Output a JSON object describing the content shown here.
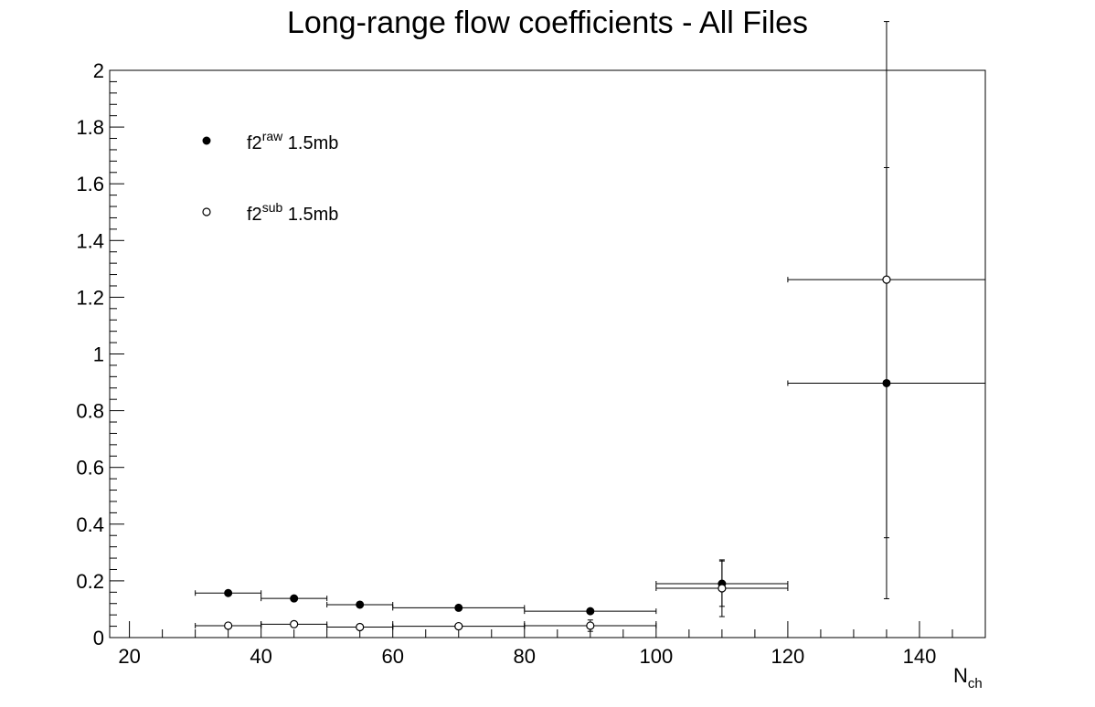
{
  "chart_data": {
    "type": "scatter",
    "title": "Long-range flow coefficients - All Files",
    "xlabel": "N",
    "xlabel_sub": "ch",
    "ylabel": "",
    "xlim": [
      17,
      150
    ],
    "ylim": [
      0,
      2
    ],
    "x_ticks": [
      20,
      40,
      60,
      80,
      100,
      120,
      140
    ],
    "y_ticks": [
      0,
      0.2,
      0.4,
      0.6,
      0.8,
      1,
      1.2,
      1.4,
      1.6,
      1.8,
      2
    ],
    "x_tick_labels": [
      "20",
      "40",
      "60",
      "80",
      "100",
      "120",
      "140"
    ],
    "y_tick_labels": [
      "0",
      "0.2",
      "0.4",
      "0.6",
      "0.8",
      "1",
      "1.2",
      "1.4",
      "1.6",
      "1.8",
      "2"
    ],
    "grid": false,
    "legend_position": "top-left",
    "series": [
      {
        "name": "f2 raw 1.5mb",
        "label_main": "f2",
        "label_sup": "raw",
        "label_tail": "1.5mb",
        "marker": "filled-circle",
        "points": [
          {
            "x": 35,
            "xerr": 5,
            "y": 0.157,
            "yerr": 0.004
          },
          {
            "x": 45,
            "xerr": 5,
            "y": 0.138,
            "yerr": 0.004
          },
          {
            "x": 55,
            "xerr": 5,
            "y": 0.116,
            "yerr": 0.005
          },
          {
            "x": 70,
            "xerr": 10,
            "y": 0.105,
            "yerr": 0.006
          },
          {
            "x": 90,
            "xerr": 10,
            "y": 0.093,
            "yerr": 0.012
          },
          {
            "x": 110,
            "xerr": 10,
            "y": 0.19,
            "yerr": 0.08
          },
          {
            "x": 135,
            "xerr": 15,
            "y": 0.897,
            "yerr": 0.76
          }
        ]
      },
      {
        "name": "f2 sub 1.5mb",
        "label_main": "f2",
        "label_sup": "sub",
        "label_tail": "1.5mb",
        "marker": "open-circle",
        "points": [
          {
            "x": 35,
            "xerr": 5,
            "y": 0.042,
            "yerr": 0.012
          },
          {
            "x": 45,
            "xerr": 5,
            "y": 0.047,
            "yerr": 0.012
          },
          {
            "x": 55,
            "xerr": 5,
            "y": 0.037,
            "yerr": 0.012
          },
          {
            "x": 70,
            "xerr": 10,
            "y": 0.04,
            "yerr": 0.012
          },
          {
            "x": 90,
            "xerr": 10,
            "y": 0.042,
            "yerr": 0.02
          },
          {
            "x": 110,
            "xerr": 10,
            "y": 0.174,
            "yerr": 0.1
          },
          {
            "x": 135,
            "xerr": 15,
            "y": 1.262,
            "yerr": 0.91
          }
        ]
      }
    ]
  }
}
